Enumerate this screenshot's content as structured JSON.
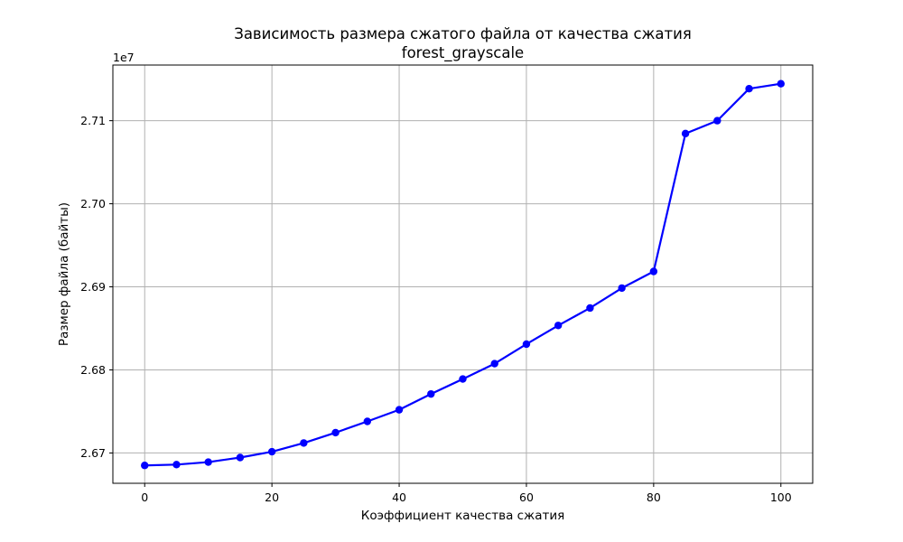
{
  "chart_data": {
    "type": "line",
    "title": "Зависимость размера сжатого файла от качества сжатия",
    "subtitle": "forest_grayscale",
    "xlabel": "Коэффициент качества сжатия",
    "ylabel": "Размер файла (байты)",
    "y_offset_label": "1e7",
    "y_scale": 10000000,
    "xlim": [
      -5,
      105
    ],
    "ylim": [
      26663500,
      27167000
    ],
    "x_ticks": [
      0,
      20,
      40,
      60,
      80,
      100
    ],
    "x_tick_labels": [
      "0",
      "20",
      "40",
      "60",
      "80",
      "100"
    ],
    "y_ticks": [
      26700000,
      26800000,
      26900000,
      27000000,
      27100000
    ],
    "y_tick_labels": [
      "2.67",
      "2.68",
      "2.69",
      "2.70",
      "2.71"
    ],
    "grid": true,
    "line_color": "#0000ff",
    "marker": "circle",
    "series": [
      {
        "x": [
          0,
          5,
          10,
          15,
          20,
          25,
          30,
          35,
          40,
          45,
          50,
          55,
          60,
          65,
          70,
          75,
          80,
          85,
          90,
          95,
          100
        ],
        "y": [
          26685000,
          26686000,
          26689000,
          26694500,
          26701500,
          26712000,
          26724500,
          26738000,
          26752000,
          26771000,
          26789000,
          26807500,
          26831000,
          26853500,
          26874500,
          26898500,
          26918500,
          27084500,
          27100000,
          27138500,
          27144500
        ]
      }
    ]
  }
}
